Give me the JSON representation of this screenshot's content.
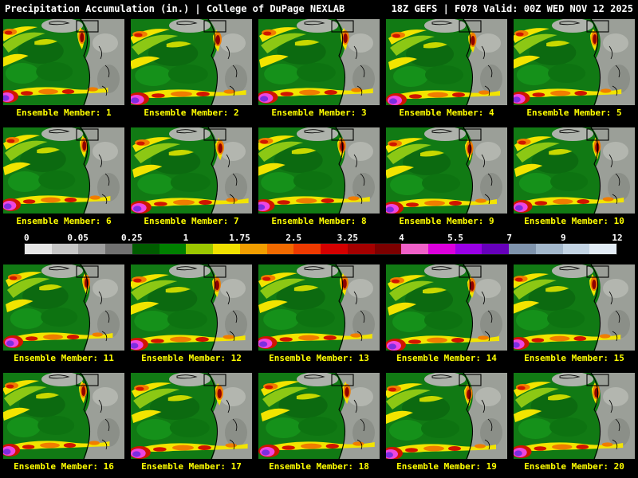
{
  "header": {
    "left": "Precipitation Accumulation (in.) | College of DuPage NEXLAB",
    "right": "18Z GEFS | F078 Valid: 00Z WED NOV 12 2025"
  },
  "panels": {
    "labels": [
      "Ensemble Member: 1",
      "Ensemble Member: 2",
      "Ensemble Member: 3",
      "Ensemble Member: 4",
      "Ensemble Member: 5",
      "Ensemble Member: 6",
      "Ensemble Member: 7",
      "Ensemble Member: 8",
      "Ensemble Member: 9",
      "Ensemble Member: 10",
      "Ensemble Member: 11",
      "Ensemble Member: 12",
      "Ensemble Member: 13",
      "Ensemble Member: 14",
      "Ensemble Member: 15",
      "Ensemble Member: 16",
      "Ensemble Member: 17",
      "Ensemble Member: 18",
      "Ensemble Member: 19",
      "Ensemble Member: 20"
    ]
  },
  "colorbar": {
    "units": "in.",
    "ticks": [
      "0",
      "0.05",
      "0.25",
      "1",
      "1.75",
      "2.5",
      "3.25",
      "4",
      "5.5",
      "7",
      "9",
      "12"
    ],
    "segment_colors": [
      "#e6e6e6",
      "#c6c6c6",
      "#9e9e9e",
      "#717171",
      "#005c00",
      "#008000",
      "#9cc700",
      "#f0e000",
      "#f29e00",
      "#f26a00",
      "#ee3a00",
      "#d40000",
      "#a40000",
      "#7c0000",
      "#f060c8",
      "#dc00dc",
      "#9900e6",
      "#6600bb",
      "#7f94ad",
      "#a3b8cc",
      "#c3d4e4",
      "#e2ecf5"
    ]
  },
  "colors": {
    "background": "#000000",
    "header_text": "#ffffff",
    "member_label_text": "#ffff00",
    "map_green": "#117a14",
    "map_gray": "#9b9f98"
  }
}
